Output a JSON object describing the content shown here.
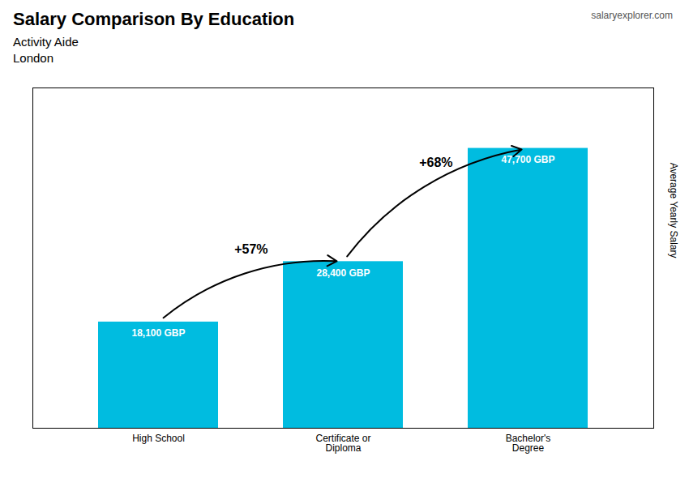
{
  "chart_data": {
    "type": "bar",
    "title": "Salary Comparison By Education",
    "subtitle": [
      "Activity Aide",
      "London"
    ],
    "source": "salaryexplorer.com",
    "ylabel": "Average Yearly Salary",
    "categories": [
      "High School",
      "Certificate or\nDiploma",
      "Bachelor's\nDegree"
    ],
    "values": [
      18100,
      28400,
      47700
    ],
    "value_labels": [
      "18,100 GBP",
      "28,400 GBP",
      "47,700 GBP"
    ],
    "data_labels": true,
    "annotations": [
      "+57%",
      "+68%"
    ],
    "color": "#00bce0",
    "ylim": [
      0,
      58000
    ],
    "yticks": [],
    "tick_labels": "x",
    "grid": false
  }
}
